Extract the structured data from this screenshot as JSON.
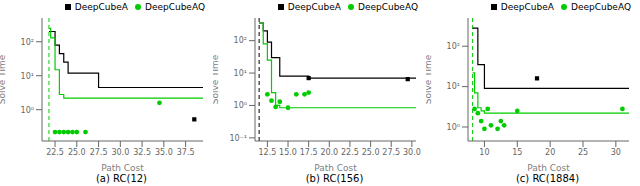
{
  "chart_data": [
    {
      "type": "line",
      "title": "(a) RC(12)",
      "x_label": "Path Cost",
      "y_label": "Solve Time",
      "xlim": [
        21.0,
        39.5
      ],
      "ylim": [
        0.12,
        500
      ],
      "xticks": [
        22.5,
        {
          "value": 25.0,
          "label": "25.0"
        },
        27.5,
        {
          "value": 30.0,
          "label": "30.0"
        },
        32.5,
        {
          "value": 35.0,
          "label": "35.0"
        },
        37.5
      ],
      "yticks": [
        {
          "value": 1,
          "label": "10⁰"
        },
        {
          "value": 10,
          "label": "10¹"
        },
        {
          "value": 100,
          "label": "10²"
        }
      ],
      "log": "y",
      "grid": false,
      "legend": "upper right",
      "vlines": [
        {
          "x": 21.8,
          "color": "#00cc00",
          "line_style": "dashed"
        }
      ],
      "series": [
        {
          "name": "DeepCubeA",
          "type": "step",
          "color": "#000000",
          "x": [
            21.8,
            22.5,
            23.0,
            23.5,
            24.0,
            27.5,
            39.5
          ],
          "values": [
            200,
            80,
            45,
            25,
            12,
            4.5,
            4.5
          ]
        },
        {
          "name": "DeepCubeAQ",
          "type": "step",
          "color": "#00cc00",
          "x": [
            21.8,
            22.0,
            22.5,
            23.0,
            23.5,
            39.5
          ],
          "values": [
            250,
            130,
            15,
            2.8,
            2.2,
            2.2
          ]
        },
        {
          "name": "DeepCubeA",
          "type": "scatter",
          "marker": "square",
          "color": "#000000",
          "x": [
            38.5
          ],
          "values": [
            0.52
          ]
        },
        {
          "name": "DeepCubeAQ",
          "type": "scatter",
          "marker": "circle",
          "color": "#00cc00",
          "x": [
            22.5,
            23.0,
            23.5,
            24.0,
            24.5,
            25.0,
            26.0,
            34.5
          ],
          "values": [
            0.22,
            0.22,
            0.22,
            0.22,
            0.22,
            0.22,
            0.22,
            1.6
          ]
        }
      ]
    },
    {
      "type": "line",
      "title": "(b) RC(156)",
      "x_label": "Path Cost",
      "y_label": "Solve Time",
      "xlim": [
        11.0,
        30.5
      ],
      "ylim": [
        0.08,
        500
      ],
      "xticks": [
        12.5,
        {
          "value": 15.0,
          "label": "15.0"
        },
        17.5,
        {
          "value": 20.0,
          "label": "20.0"
        },
        22.5,
        {
          "value": 25.0,
          "label": "25.0"
        },
        27.5,
        {
          "value": 30.0,
          "label": "30.0"
        }
      ],
      "yticks": [
        {
          "value": 0.1,
          "label": "10⁻¹"
        },
        {
          "value": 1,
          "label": "10⁰"
        },
        {
          "value": 10,
          "label": "10¹"
        },
        {
          "value": 100,
          "label": "10²"
        }
      ],
      "log": "y",
      "grid": false,
      "legend": "upper right",
      "vlines": [
        {
          "x": 11.5,
          "color": "#000000",
          "line_style": "dashed"
        }
      ],
      "series": [
        {
          "name": "DeepCubeA",
          "type": "step",
          "color": "#000000",
          "x": [
            11.5,
            12.0,
            12.5,
            13.0,
            14.0,
            17.5,
            30.5
          ],
          "values": [
            350,
            200,
            90,
            30,
            8,
            7,
            7
          ]
        },
        {
          "name": "DeepCubeAQ",
          "type": "step",
          "color": "#00cc00",
          "x": [
            11.5,
            12.0,
            12.5,
            13.0,
            13.5,
            14.0,
            30.5
          ],
          "values": [
            350,
            80,
            25,
            2.5,
            1.0,
            0.85,
            0.85
          ]
        },
        {
          "name": "DeepCubeA",
          "type": "scatter",
          "marker": "square",
          "color": "#000000",
          "x": [
            17.5,
            29.5
          ],
          "values": [
            7.0,
            6.5
          ]
        },
        {
          "name": "DeepCubeAQ",
          "type": "scatter",
          "marker": "circle",
          "color": "#00cc00",
          "x": [
            12.5,
            13.0,
            13.5,
            14.0,
            15.0,
            16.0,
            17.0,
            17.5
          ],
          "values": [
            2.2,
            1.4,
            0.9,
            1.3,
            0.85,
            2.2,
            2.2,
            2.5
          ]
        }
      ]
    },
    {
      "type": "line",
      "title": "(c) RC(1884)",
      "x_label": "Path Cost",
      "y_label": "Solve Time",
      "xlim": [
        7.5,
        32.0
      ],
      "ylim": [
        0.45,
        500
      ],
      "xticks": [
        10,
        15,
        20,
        25,
        30
      ],
      "yticks": [
        {
          "value": 1,
          "label": "10⁰"
        },
        {
          "value": 10,
          "label": "10¹"
        },
        {
          "value": 100,
          "label": "10²"
        }
      ],
      "log": "y",
      "grid": false,
      "legend": "upper right",
      "vlines": [
        {
          "x": 8.2,
          "color": "#00cc00",
          "line_style": "dashed"
        }
      ],
      "series": [
        {
          "name": "DeepCubeA",
          "type": "step",
          "color": "#000000",
          "x": [
            8.2,
            9.0,
            10.0,
            32.0
          ],
          "values": [
            280,
            35,
            9.0,
            9.0
          ]
        },
        {
          "name": "DeepCubeAQ",
          "type": "step",
          "color": "#00cc00",
          "x": [
            8.2,
            8.5,
            9.0,
            9.5,
            10.0,
            32.0
          ],
          "values": [
            22,
            7,
            3.0,
            2.5,
            2.2,
            2.2
          ]
        },
        {
          "name": "DeepCubeA",
          "type": "scatter",
          "marker": "square",
          "color": "#000000",
          "x": [
            18.0
          ],
          "values": [
            16
          ]
        },
        {
          "name": "DeepCubeAQ",
          "type": "scatter",
          "marker": "circle",
          "color": "#00cc00",
          "x": [
            8.5,
            9.0,
            9.5,
            10.0,
            10.5,
            11.0,
            12.0,
            12.5,
            13.0,
            15.0,
            31.0
          ],
          "values": [
            2.8,
            2.2,
            1.4,
            0.9,
            2.8,
            1.1,
            0.9,
            1.4,
            1.1,
            2.5,
            2.8
          ]
        }
      ]
    }
  ]
}
